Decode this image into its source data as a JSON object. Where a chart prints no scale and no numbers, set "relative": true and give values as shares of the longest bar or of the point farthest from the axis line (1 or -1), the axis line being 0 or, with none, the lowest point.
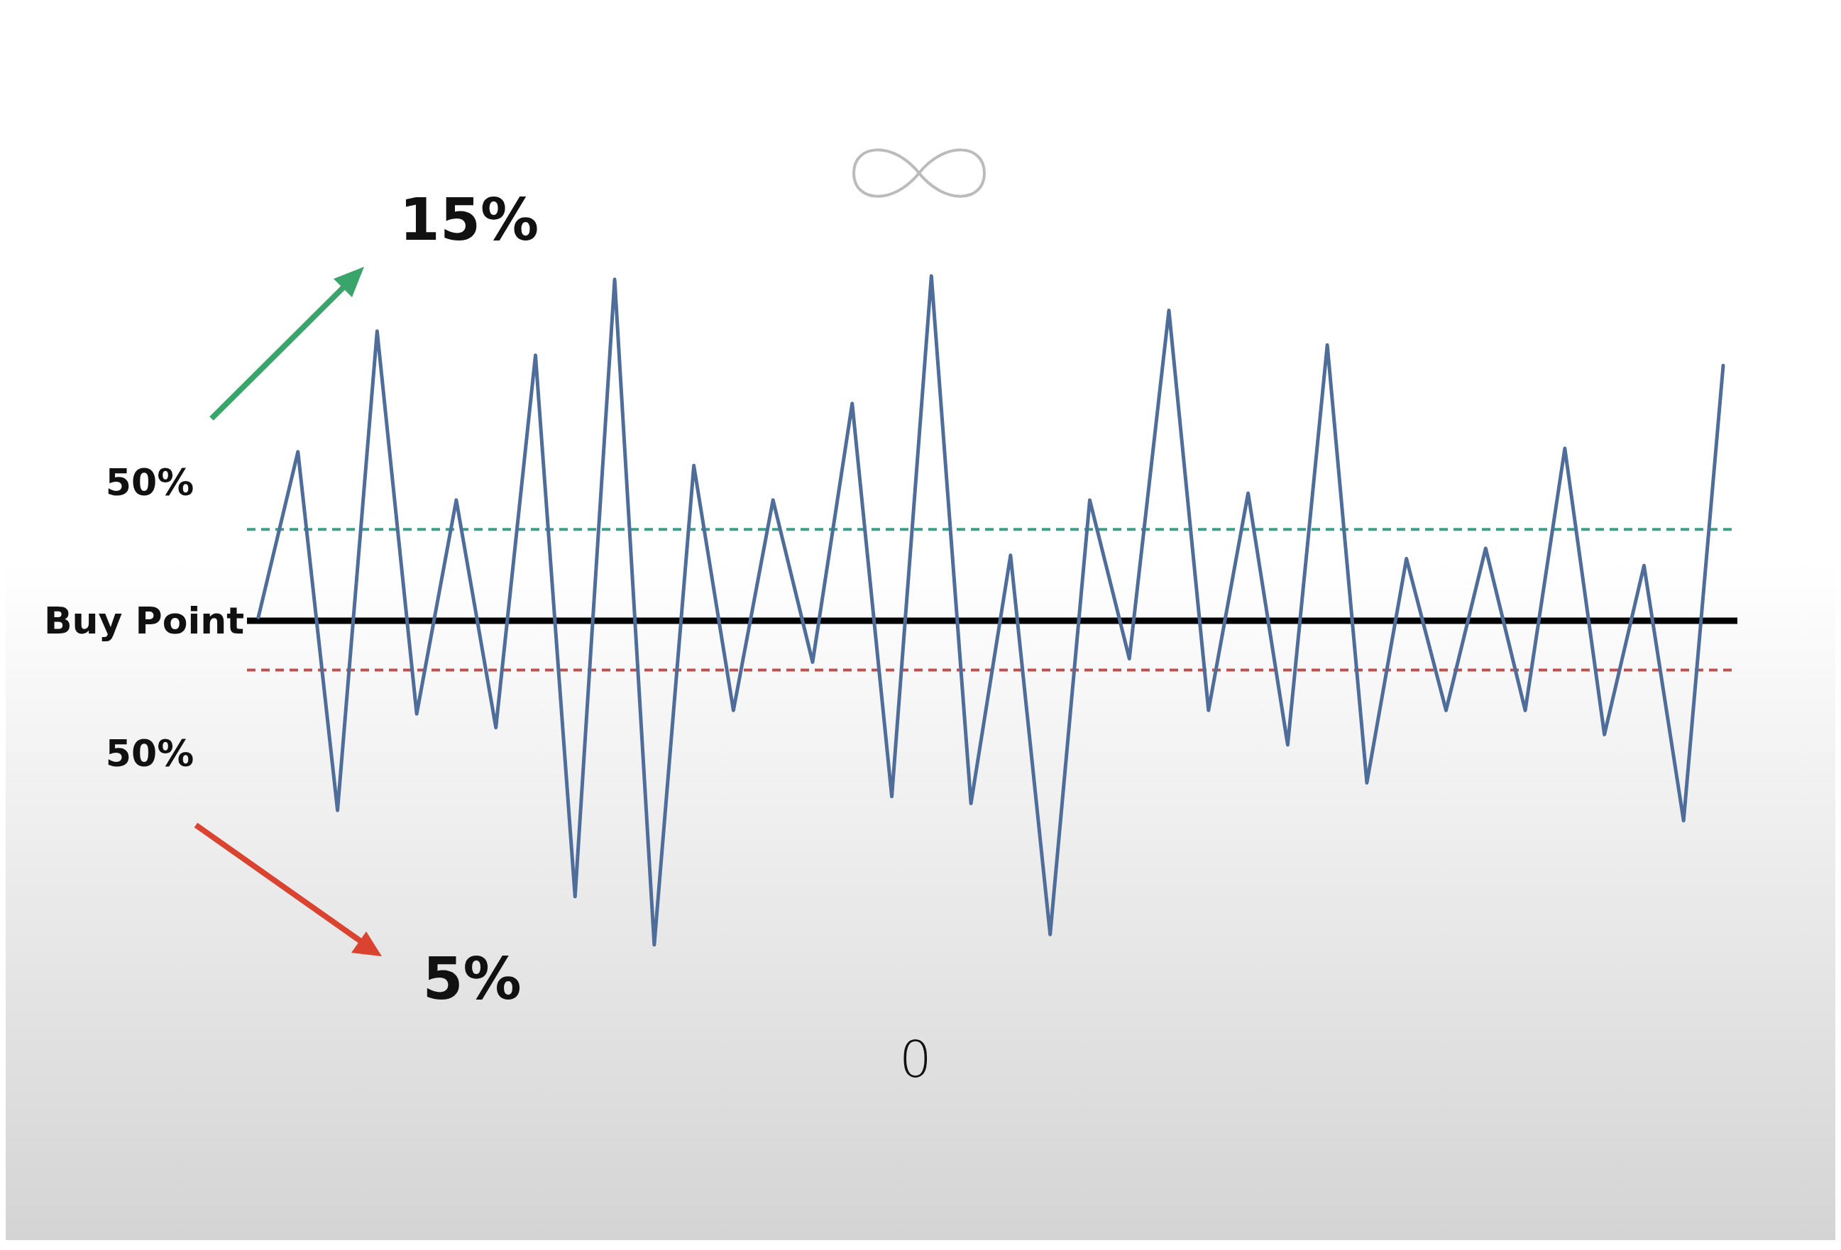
{
  "chart_data": {
    "type": "line",
    "relative": true,
    "categories": [
      null,
      null,
      null,
      null,
      null,
      null,
      null,
      null,
      null,
      null,
      null,
      null,
      null,
      null,
      null,
      null,
      null,
      null,
      null,
      null,
      null,
      null,
      null,
      null,
      null,
      null,
      null,
      null,
      null,
      null,
      null,
      null,
      null,
      null,
      null,
      null,
      null,
      null
    ],
    "series": [
      {
        "color": "#4f6d9a",
        "values": [
          0.01,
          0.49,
          -0.55,
          0.84,
          -0.27,
          0.35,
          -0.31,
          0.77,
          -0.8,
          0.99,
          -0.94,
          0.45,
          -0.26,
          0.35,
          -0.12,
          0.63,
          -0.51,
          1.0,
          -0.53,
          0.19,
          -0.91,
          0.35,
          -0.11,
          0.9,
          -0.26,
          0.37,
          -0.36,
          0.8,
          -0.47,
          0.18,
          -0.26,
          0.21,
          -0.26,
          0.5,
          -0.33,
          0.16,
          -0.58,
          0.74
        ]
      }
    ],
    "ref_lines": [
      {
        "axis": "y",
        "value": 0.265,
        "color": "#3d9e8a",
        "line_style": "dashed"
      },
      {
        "axis": "y",
        "value": -0.143,
        "color": "#c0504d",
        "line_style": "dashed"
      }
    ],
    "annotations": [
      "Buy Point",
      "50%",
      "50%",
      "15%",
      "5%",
      "0"
    ]
  }
}
